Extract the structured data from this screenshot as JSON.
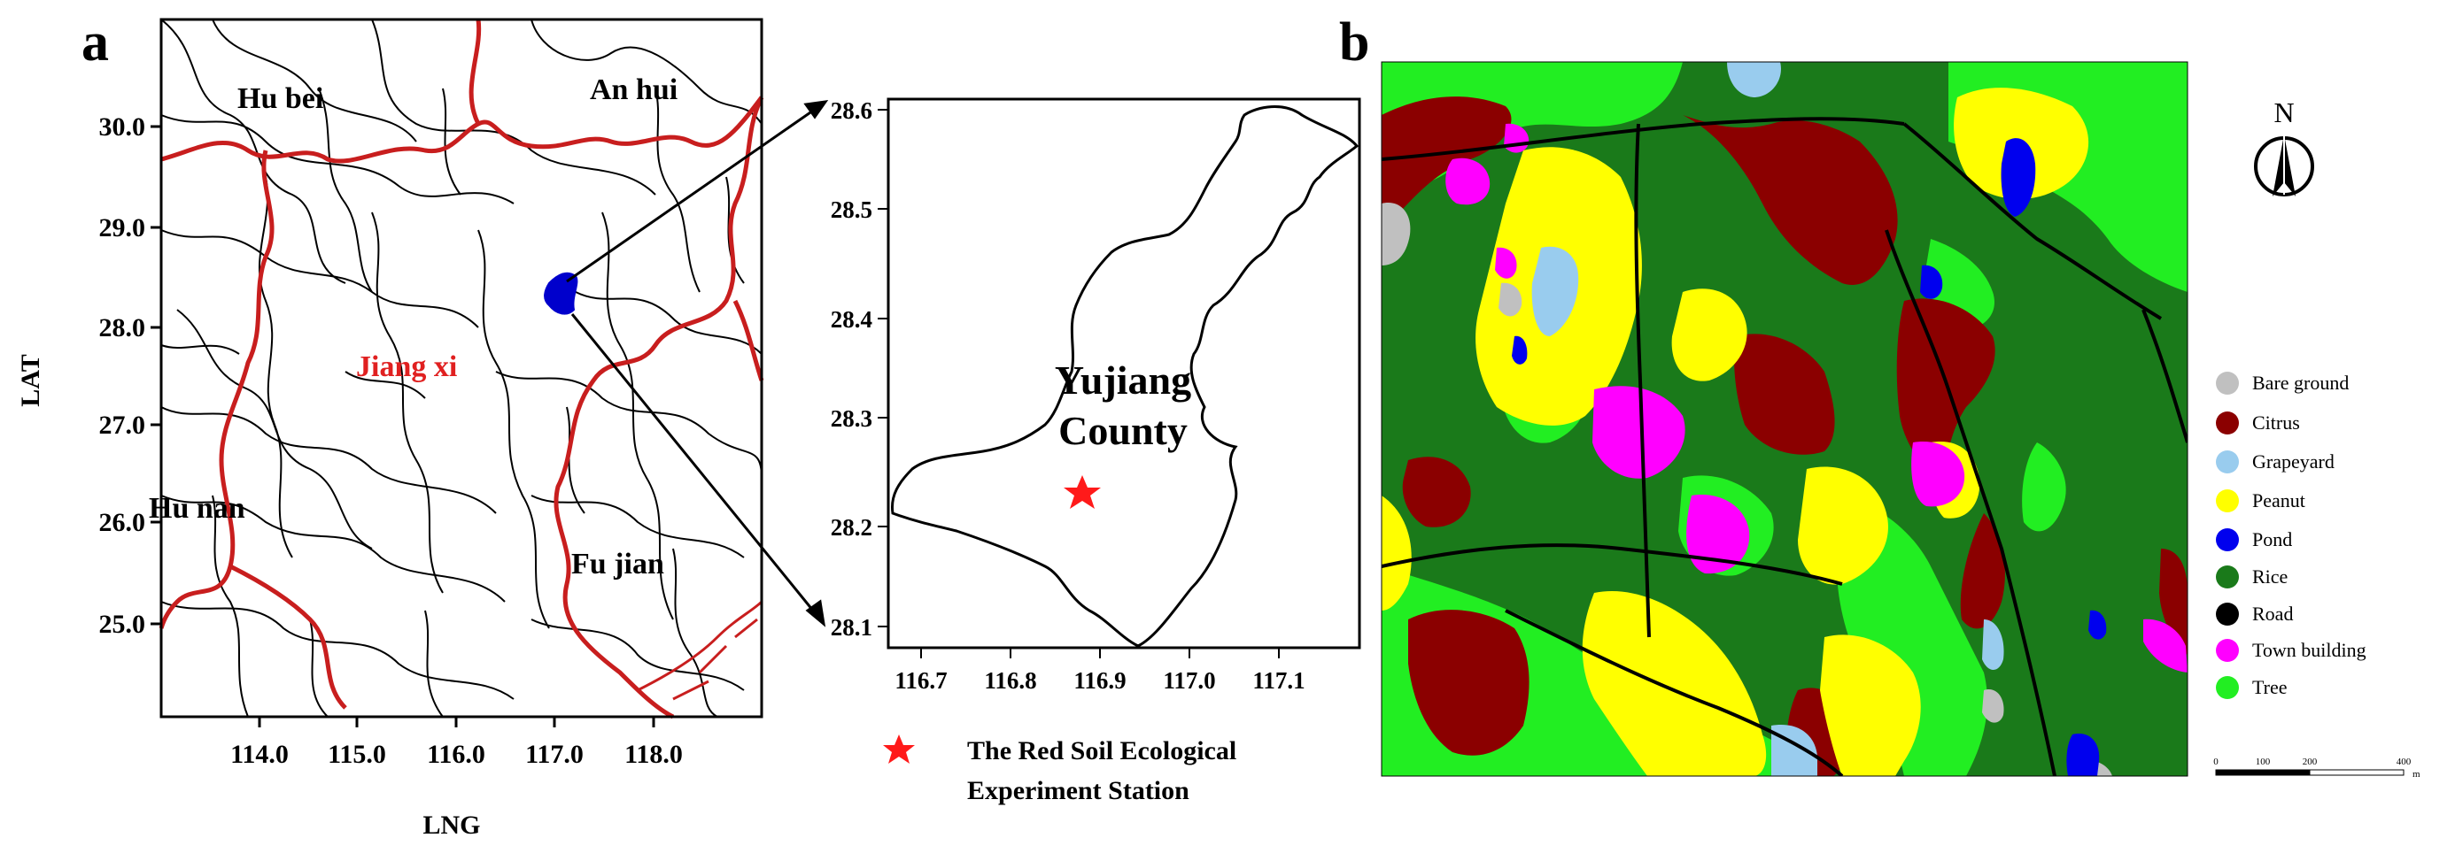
{
  "panel_a": {
    "label": "a",
    "xlabel": "LNG",
    "ylabel": "LAT",
    "x_ticks": [
      "114.0",
      "115.0",
      "116.0",
      "117.0",
      "118.0"
    ],
    "y_ticks": [
      "30.0",
      "29.0",
      "28.0",
      "27.0",
      "26.0",
      "25.0"
    ],
    "provinces": [
      "Hu bei",
      "An hui",
      "Jiang xi",
      "Hu nan",
      "Fu jian"
    ]
  },
  "inset": {
    "x_ticks": [
      "116.7",
      "116.8",
      "116.9",
      "117.0",
      "117.1"
    ],
    "y_ticks": [
      "28.6",
      "28.5",
      "28.4",
      "28.3",
      "28.2",
      "28.1"
    ],
    "county_line1": "Yujiang",
    "county_line2": "County",
    "legend_line1": "The Red Soil Ecological",
    "legend_line2": "Experiment Station"
  },
  "panel_b": {
    "label": "b",
    "north": "N",
    "legend": [
      {
        "label": "Bare ground",
        "color": "#c0c0c0"
      },
      {
        "label": "Citrus",
        "color": "#8b0000"
      },
      {
        "label": "Grapeyard",
        "color": "#99ccee"
      },
      {
        "label": "Peanut",
        "color": "#ffff00"
      },
      {
        "label": "Pond",
        "color": "#0000ee"
      },
      {
        "label": "Rice",
        "color": "#1a7a1a"
      },
      {
        "label": "Road",
        "color": "#000000"
      },
      {
        "label": "Town building",
        "color": "#ff00ff"
      },
      {
        "label": "Tree",
        "color": "#22ee22"
      }
    ],
    "scale_ticks": [
      "0",
      "100",
      "200",
      "400"
    ],
    "scale_unit": "m"
  },
  "colors": {
    "province_border": "#c81e1e",
    "jiangxi_label": "#e02020",
    "county_highlight": "#0000cc",
    "station_star": "#ff1a1a"
  }
}
